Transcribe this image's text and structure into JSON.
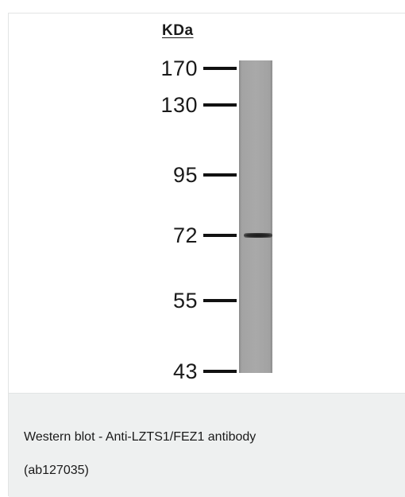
{
  "figure": {
    "unit_label": "KDa",
    "markers": [
      {
        "label": "170"
      },
      {
        "label": "130"
      },
      {
        "label": "95"
      },
      {
        "label": "72"
      },
      {
        "label": "55"
      },
      {
        "label": "43"
      }
    ]
  },
  "caption": {
    "line1": "Western blot - Anti-LZTS1/FEZ1 antibody",
    "line2": "(ab127035)"
  }
}
